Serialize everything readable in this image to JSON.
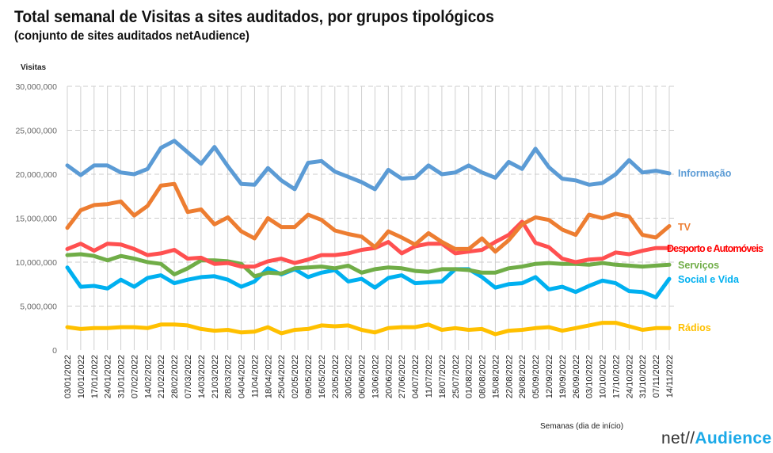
{
  "chart_data": {
    "type": "line",
    "title": "Total semanal de Visitas a sites auditados, por grupos tipológicos",
    "subtitle": "(conjunto de sites auditados netAudience)",
    "ylabel": "Visitas",
    "xlabel": "Semanas  (dia de início)",
    "ylim": [
      0,
      30000000
    ],
    "yticks": [
      "0",
      "5,000,000",
      "10,000,000",
      "15,000,000",
      "20,000,000",
      "25,000,000",
      "30,000,000"
    ],
    "grid": "horizontal dashed, vertical solid",
    "legend": "right (inline labels at line ends)",
    "categories": [
      "03/01/2022",
      "10/01/2022",
      "17/01/2022",
      "24/01/2022",
      "31/01/2022",
      "07/02/2022",
      "14/02/2022",
      "21/02/2022",
      "28/02/2022",
      "07/03/2022",
      "14/03/2022",
      "21/03/2022",
      "28/03/2022",
      "04/04/2022",
      "11/04/2022",
      "18/04/2022",
      "25/04/2022",
      "02/05/2022",
      "09/05/2022",
      "16/05/2022",
      "23/05/2022",
      "30/05/2022",
      "06/06/2022",
      "13/06/2022",
      "20/06/2022",
      "27/06/2022",
      "04/07/2022",
      "11/07/2022",
      "18/07/2022",
      "25/07/2022",
      "01/08/2022",
      "08/08/2022",
      "15/08/2022",
      "22/08/2022",
      "29/08/2022",
      "05/09/2022",
      "12/09/2022",
      "19/09/2022",
      "26/09/2022",
      "03/10/2022",
      "10/10/2022",
      "17/10/2022",
      "24/10/2022",
      "31/10/2022",
      "07/11/2022",
      "14/11/2022"
    ],
    "series": [
      {
        "name": "Informação",
        "color": "#5b9bd5",
        "values": [
          21.0,
          19.9,
          21.0,
          21.0,
          20.2,
          20.0,
          20.6,
          23.0,
          23.8,
          22.5,
          21.2,
          23.1,
          20.9,
          18.9,
          18.8,
          20.7,
          19.3,
          18.3,
          21.3,
          21.5,
          20.3,
          19.7,
          19.1,
          18.3,
          20.5,
          19.5,
          19.6,
          21.0,
          20.0,
          20.2,
          21.0,
          20.2,
          19.6,
          21.4,
          20.6,
          22.9,
          20.8,
          19.5,
          19.3,
          18.8,
          19.0,
          20.0,
          21.6,
          20.2,
          20.4,
          20.1
        ]
      },
      {
        "name": "TV",
        "color": "#ed7d31",
        "values": [
          13.9,
          15.9,
          16.5,
          16.6,
          16.9,
          15.3,
          16.4,
          18.7,
          18.9,
          15.7,
          16.0,
          14.3,
          15.1,
          13.5,
          12.7,
          15.0,
          14.0,
          14.0,
          15.4,
          14.8,
          13.6,
          13.2,
          12.9,
          11.7,
          13.5,
          12.8,
          12.0,
          13.3,
          12.3,
          11.5,
          11.5,
          12.7,
          11.2,
          12.5,
          14.3,
          15.1,
          14.8,
          13.7,
          13.1,
          15.4,
          15.0,
          15.5,
          15.2,
          13.1,
          12.8,
          14.1
        ]
      },
      {
        "name": "Desporto e Automóveis",
        "color": "#ff5050",
        "labelColor": "#ff0000",
        "values": [
          11.5,
          12.1,
          11.3,
          12.1,
          12.0,
          11.5,
          10.8,
          11.0,
          11.4,
          10.4,
          10.5,
          9.8,
          9.9,
          9.5,
          9.5,
          10.1,
          10.4,
          9.9,
          10.3,
          10.8,
          10.8,
          11.0,
          11.4,
          11.6,
          12.3,
          11.0,
          11.8,
          12.1,
          12.1,
          11.0,
          11.2,
          11.4,
          12.3,
          13.1,
          14.6,
          12.2,
          11.7,
          10.4,
          10.0,
          10.3,
          10.4,
          11.1,
          10.9,
          11.3,
          11.6,
          11.6
        ]
      },
      {
        "name": "Serviços",
        "color": "#70ad47",
        "values": [
          10.8,
          10.9,
          10.7,
          10.2,
          10.7,
          10.4,
          10.0,
          9.8,
          8.6,
          9.3,
          10.2,
          10.2,
          10.1,
          9.8,
          8.4,
          8.8,
          8.7,
          9.3,
          9.4,
          9.5,
          9.3,
          9.6,
          8.8,
          9.2,
          9.4,
          9.3,
          9.0,
          8.9,
          9.2,
          9.2,
          9.1,
          8.8,
          8.8,
          9.3,
          9.5,
          9.8,
          9.9,
          9.8,
          9.8,
          9.7,
          9.9,
          9.7,
          9.6,
          9.5,
          9.6,
          9.7
        ]
      },
      {
        "name": "Social e Vida",
        "color": "#00b0f0",
        "values": [
          9.4,
          7.2,
          7.3,
          7.0,
          8.0,
          7.2,
          8.2,
          8.5,
          7.6,
          8.0,
          8.3,
          8.4,
          8.0,
          7.2,
          7.8,
          9.3,
          8.6,
          9.2,
          8.3,
          8.8,
          9.1,
          7.8,
          8.1,
          7.1,
          8.2,
          8.5,
          7.6,
          7.7,
          7.8,
          9.2,
          9.2,
          8.3,
          7.1,
          7.5,
          7.6,
          8.3,
          6.9,
          7.2,
          6.6,
          7.3,
          7.9,
          7.6,
          6.7,
          6.6,
          6.0,
          8.1
        ]
      },
      {
        "name": "Rádios",
        "color": "#ffc000",
        "values": [
          2.6,
          2.4,
          2.5,
          2.5,
          2.6,
          2.6,
          2.5,
          2.9,
          2.9,
          2.8,
          2.4,
          2.2,
          2.3,
          2.0,
          2.1,
          2.6,
          1.9,
          2.3,
          2.4,
          2.8,
          2.7,
          2.8,
          2.3,
          2.0,
          2.5,
          2.6,
          2.6,
          2.9,
          2.3,
          2.5,
          2.3,
          2.4,
          1.8,
          2.2,
          2.3,
          2.5,
          2.6,
          2.2,
          2.5,
          2.8,
          3.1,
          3.1,
          2.7,
          2.3,
          2.5,
          2.5
        ]
      }
    ],
    "value_unit": "millions of visits"
  },
  "logo": {
    "part1": "net//",
    "part2": "Audience"
  }
}
